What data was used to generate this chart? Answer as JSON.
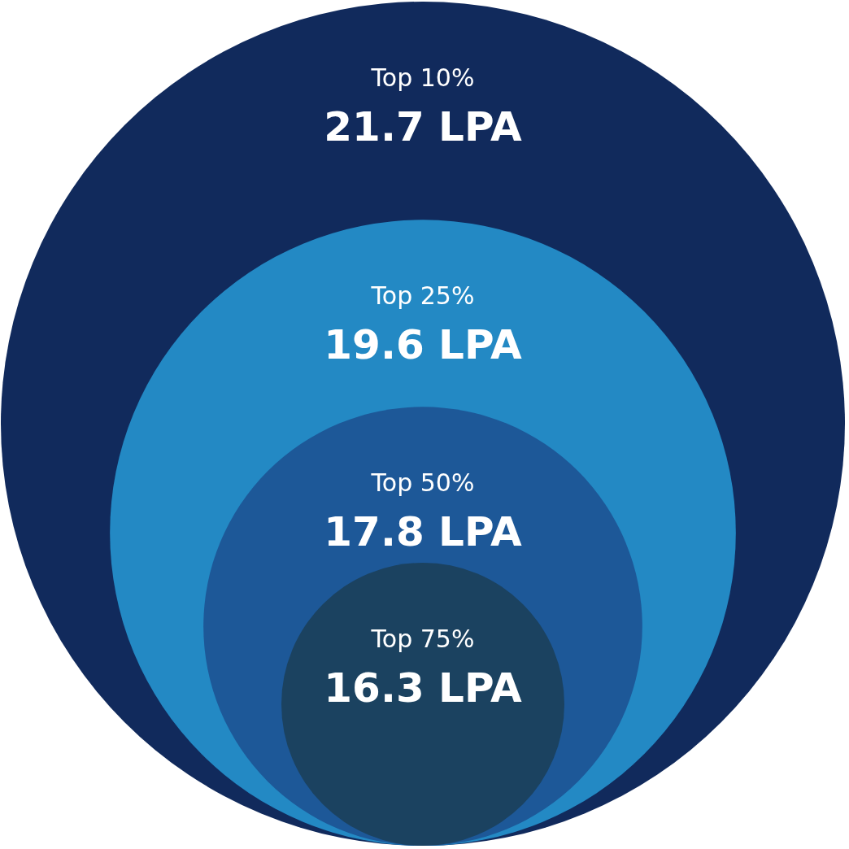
{
  "chart_data": {
    "type": "other",
    "categories": [
      "Top 10%",
      "Top 25%",
      "Top 50%",
      "Top 75%"
    ],
    "values": [
      21.7,
      19.6,
      17.8,
      16.3
    ],
    "value_labels": [
      "21.7 LPA",
      "19.6 LPA",
      "17.8 LPA",
      "16.3 LPA"
    ],
    "colors": [
      "#112a5c",
      "#2389c4",
      "#1d5898",
      "#1b4260"
    ]
  }
}
